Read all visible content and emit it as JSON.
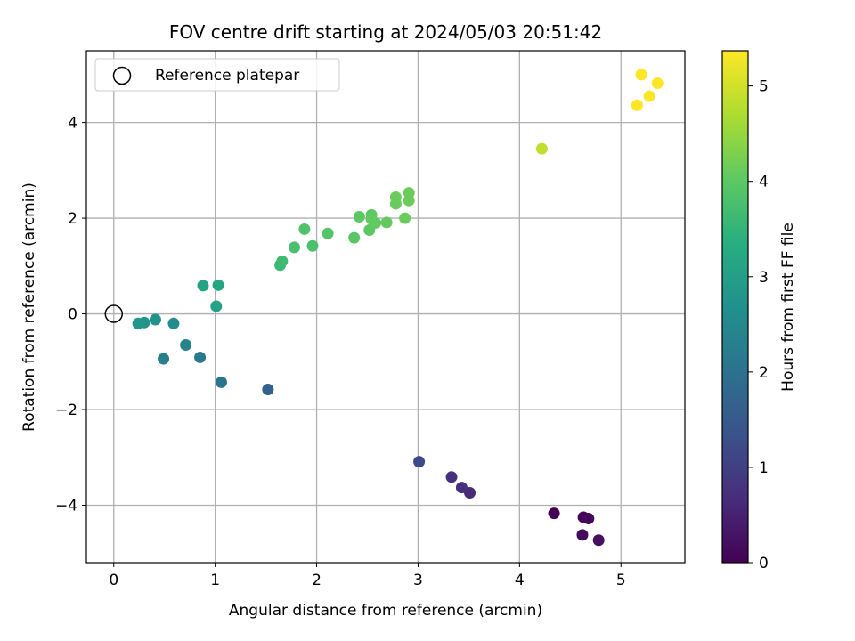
{
  "chart_data": {
    "type": "scatter",
    "title": "FOV centre drift starting at 2024/05/03 20:51:42",
    "xlabel": "Angular distance from reference (arcmin)",
    "ylabel": "Rotation from reference (arcmin)",
    "xlim": [
      -0.27,
      5.63
    ],
    "ylim": [
      -5.2,
      5.5
    ],
    "xticks": [
      0,
      1,
      2,
      3,
      4,
      5
    ],
    "yticks": [
      -4,
      -2,
      0,
      2,
      4
    ],
    "grid": true,
    "legend": {
      "position": "top-left",
      "label": "Reference platepar"
    },
    "reference_point": {
      "x": 0,
      "y": 0
    },
    "colorbar": {
      "label": "Hours from first FF file",
      "range": [
        0,
        5.37
      ],
      "ticks": [
        0,
        1,
        2,
        3,
        4,
        5
      ],
      "colormap": "viridis"
    },
    "points": [
      {
        "x": 4.34,
        "y": -4.17,
        "c": 0.0
      },
      {
        "x": 4.63,
        "y": -4.25,
        "c": 0.05
      },
      {
        "x": 4.68,
        "y": -4.28,
        "c": 0.1
      },
      {
        "x": 4.62,
        "y": -4.62,
        "c": 0.15
      },
      {
        "x": 4.78,
        "y": -4.73,
        "c": 0.2
      },
      {
        "x": 3.51,
        "y": -3.74,
        "c": 0.65
      },
      {
        "x": 3.43,
        "y": -3.63,
        "c": 0.7
      },
      {
        "x": 3.33,
        "y": -3.41,
        "c": 0.75
      },
      {
        "x": 3.01,
        "y": -3.09,
        "c": 1.2
      },
      {
        "x": 1.52,
        "y": -1.58,
        "c": 1.7
      },
      {
        "x": 1.06,
        "y": -1.43,
        "c": 2.05
      },
      {
        "x": 0.85,
        "y": -0.91,
        "c": 2.2
      },
      {
        "x": 0.49,
        "y": -0.94,
        "c": 2.3
      },
      {
        "x": 0.71,
        "y": -0.65,
        "c": 2.4
      },
      {
        "x": 0.59,
        "y": -0.2,
        "c": 2.6
      },
      {
        "x": 0.41,
        "y": -0.12,
        "c": 2.7
      },
      {
        "x": 0.3,
        "y": -0.18,
        "c": 2.75
      },
      {
        "x": 0.24,
        "y": -0.2,
        "c": 2.8
      },
      {
        "x": 1.01,
        "y": 0.16,
        "c": 3.05
      },
      {
        "x": 0.88,
        "y": 0.59,
        "c": 3.1
      },
      {
        "x": 1.03,
        "y": 0.6,
        "c": 3.15
      },
      {
        "x": 1.64,
        "y": 1.02,
        "c": 3.6
      },
      {
        "x": 1.66,
        "y": 1.1,
        "c": 3.65
      },
      {
        "x": 1.78,
        "y": 1.39,
        "c": 3.75
      },
      {
        "x": 1.96,
        "y": 1.42,
        "c": 3.8
      },
      {
        "x": 1.88,
        "y": 1.77,
        "c": 3.85
      },
      {
        "x": 2.11,
        "y": 1.68,
        "c": 3.9
      },
      {
        "x": 2.37,
        "y": 1.59,
        "c": 3.95
      },
      {
        "x": 2.42,
        "y": 2.03,
        "c": 4.0
      },
      {
        "x": 2.52,
        "y": 1.75,
        "c": 4.0
      },
      {
        "x": 2.54,
        "y": 2.07,
        "c": 4.02
      },
      {
        "x": 2.54,
        "y": 1.98,
        "c": 4.05
      },
      {
        "x": 2.58,
        "y": 1.9,
        "c": 4.05
      },
      {
        "x": 2.69,
        "y": 1.91,
        "c": 4.08
      },
      {
        "x": 2.78,
        "y": 2.3,
        "c": 4.1
      },
      {
        "x": 2.78,
        "y": 2.44,
        "c": 4.12
      },
      {
        "x": 2.87,
        "y": 2.0,
        "c": 4.12
      },
      {
        "x": 2.91,
        "y": 2.37,
        "c": 4.15
      },
      {
        "x": 2.91,
        "y": 2.53,
        "c": 4.15
      },
      {
        "x": 4.22,
        "y": 3.45,
        "c": 4.85
      },
      {
        "x": 5.16,
        "y": 4.36,
        "c": 5.35
      },
      {
        "x": 5.28,
        "y": 4.55,
        "c": 5.35
      },
      {
        "x": 5.2,
        "y": 5.0,
        "c": 5.37
      },
      {
        "x": 5.36,
        "y": 4.82,
        "c": 5.37
      }
    ]
  }
}
